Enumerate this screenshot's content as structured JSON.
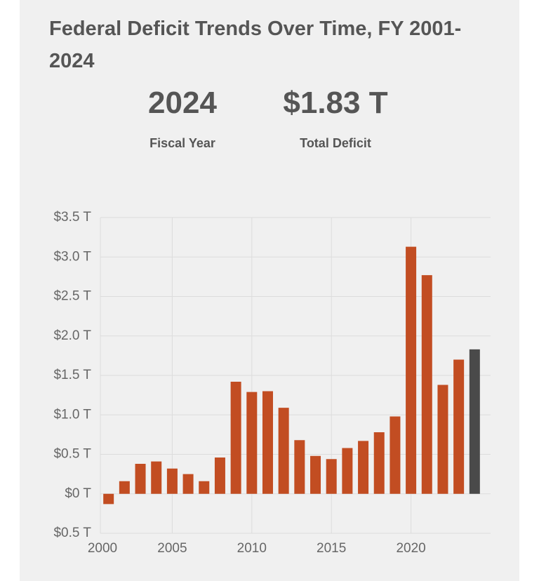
{
  "title": "Federal Deficit Trends Over Time, FY 2001-2024",
  "summary": [
    {
      "value": "2024",
      "label": "Fiscal Year"
    },
    {
      "value": "$1.83 T",
      "label": "Total Deficit"
    }
  ],
  "chart_data": {
    "type": "bar",
    "x": [
      2001,
      2002,
      2003,
      2004,
      2005,
      2006,
      2007,
      2008,
      2009,
      2010,
      2011,
      2012,
      2013,
      2014,
      2015,
      2016,
      2017,
      2018,
      2019,
      2020,
      2021,
      2022,
      2023,
      2024
    ],
    "values": [
      -0.13,
      0.16,
      0.38,
      0.41,
      0.32,
      0.25,
      0.16,
      0.46,
      1.42,
      1.29,
      1.3,
      1.09,
      0.68,
      0.48,
      0.44,
      0.58,
      0.67,
      0.78,
      0.98,
      3.13,
      2.77,
      1.38,
      1.7,
      1.83
    ],
    "colors": [
      "#c24d22",
      "#c24d22",
      "#c24d22",
      "#c24d22",
      "#c24d22",
      "#c24d22",
      "#c24d22",
      "#c24d22",
      "#c24d22",
      "#c24d22",
      "#c24d22",
      "#c24d22",
      "#c24d22",
      "#c24d22",
      "#c24d22",
      "#c24d22",
      "#c24d22",
      "#c24d22",
      "#c24d22",
      "#c24d22",
      "#c24d22",
      "#c24d22",
      "#c24d22",
      "#4a4a4a"
    ],
    "xlim": [
      2000,
      2025
    ],
    "xticks": [
      2000,
      2005,
      2010,
      2015,
      2020
    ],
    "ylim": [
      -0.5,
      3.5
    ],
    "yticks": [
      {
        "value": -0.5,
        "label": "$0.5 T"
      },
      {
        "value": 0,
        "label": "$0 T"
      },
      {
        "value": 0.5,
        "label": "$0.5 T"
      },
      {
        "value": 1.0,
        "label": "$1.0 T"
      },
      {
        "value": 1.5,
        "label": "$1.5 T"
      },
      {
        "value": 2.0,
        "label": "$2.0 T"
      },
      {
        "value": 2.5,
        "label": "$2.5 T"
      },
      {
        "value": 3.0,
        "label": "$3.0 T"
      },
      {
        "value": 3.5,
        "label": "$3.5 T"
      }
    ],
    "grid": true
  }
}
